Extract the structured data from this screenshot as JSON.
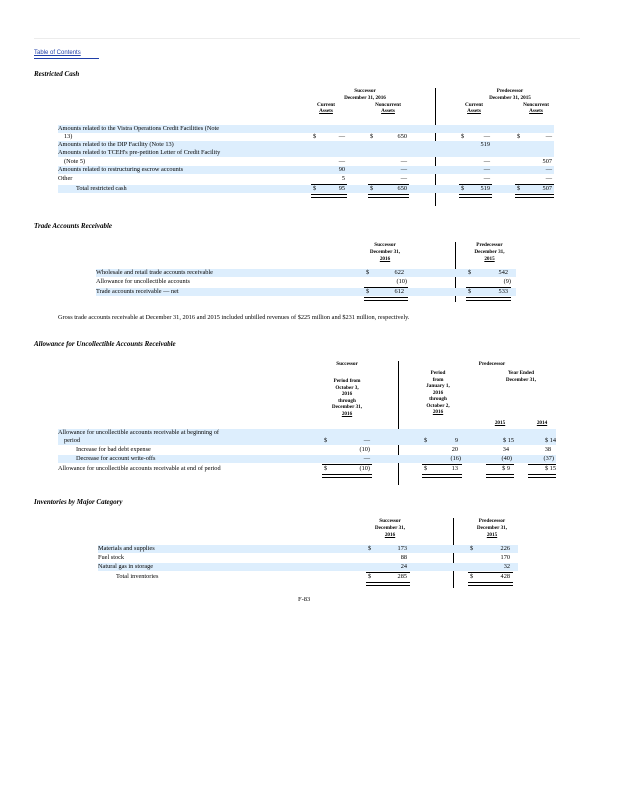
{
  "toc_link": "Table of Contents",
  "restricted_cash": {
    "title": "Restricted Cash",
    "successor_label": "Successor",
    "successor_date": "December 31, 2016",
    "predecessor_label": "Predecessor",
    "predecessor_date": "December 31, 2015",
    "col_current_1": "Current",
    "col_current_2": "Assets",
    "col_noncurrent_1": "Noncurrent",
    "col_noncurrent_2": "Assets",
    "rows": [
      {
        "label_1": "Amounts related to the Vistra Operations Credit Facilities (Note",
        "label_2": "13)",
        "s_cur": "—",
        "s_non": "650",
        "p_cur": "—",
        "p_non": "—",
        "dollar": "$"
      },
      {
        "label_1": "Amounts related to the DIP Facility (Note 13)",
        "s_cur": "",
        "s_non": "",
        "p_cur": "519",
        "p_non": ""
      },
      {
        "label_1": "Amounts related to TCEH's pre-petition Letter of Credit Facility",
        "label_2": "(Note 5)",
        "s_cur": "—",
        "s_non": "—",
        "p_cur": "—",
        "p_non": "507"
      },
      {
        "label_1": "Amounts related to restructuring escrow accounts",
        "s_cur": "90",
        "s_non": "—",
        "p_cur": "—",
        "p_non": "—"
      },
      {
        "label_1": "Other",
        "s_cur": "5",
        "s_non": "—",
        "p_cur": "—",
        "p_non": "—"
      },
      {
        "label_1": "Total restricted cash",
        "s_cur": "95",
        "s_non": "650",
        "p_cur": "519",
        "p_non": "507",
        "dollar": "$"
      }
    ]
  },
  "trade_ar": {
    "title": "Trade Accounts Receivable",
    "successor_label": "Successor",
    "successor_date_1": "December 31,",
    "successor_date_2": "2016",
    "predecessor_label": "Predecessor",
    "predecessor_date_1": "December 31,",
    "predecessor_date_2": "2015",
    "rows": [
      {
        "label": "Wholesale and retail trade accounts receivable",
        "s": "622",
        "p": "542",
        "dollar": "$"
      },
      {
        "label": "Allowance for uncollectible accounts",
        "s": "(10)",
        "p": "(9)"
      },
      {
        "label": "Trade accounts receivable — net",
        "s": "612",
        "p": "533",
        "dollar": "$"
      }
    ],
    "note": "Gross trade accounts receivable at December 31, 2016 and 2015 included unbilled revenues of $225 million and $231 million, respectively."
  },
  "allowance": {
    "title": "Allowance for Uncollectible Accounts Receivable",
    "successor_label": "Successor",
    "predecessor_label": "Predecessor",
    "successor_period": [
      "Period from",
      "October 3,",
      "2016",
      "through",
      "December 31,",
      "2016"
    ],
    "predecessor_period": [
      "Period",
      "from",
      "January 1,",
      "2016",
      "through",
      "October 2,",
      "2016"
    ],
    "year_ended_1": "Year Ended",
    "year_ended_2": "December 31,",
    "year_2015": "2015",
    "year_2014": "2014",
    "rows": [
      {
        "label_1": "Allowance for uncollectible accounts receivable at beginning of",
        "label_2": "period",
        "s": "—",
        "p": "9",
        "y15": "15",
        "y14": "14"
      },
      {
        "label_1": "Increase for bad debt expense",
        "s": "(10)",
        "p": "20",
        "y15": "34",
        "y14": "38"
      },
      {
        "label_1": "Decrease for account write-offs",
        "s": "—",
        "p": "(16)",
        "y15": "(40)",
        "y14": "(37)"
      },
      {
        "label_1": "Allowance for uncollectible accounts receivable at end of period",
        "s": "(10)",
        "p": "13",
        "y15": "9",
        "y14": "15"
      }
    ]
  },
  "inventories": {
    "title": "Inventories by Major Category",
    "successor_label": "Successor",
    "successor_date_1": "December 31,",
    "successor_date_2": "2016",
    "predecessor_label": "Predecessor",
    "predecessor_date_1": "December 31,",
    "predecessor_date_2": "2015",
    "rows": [
      {
        "label": "Materials and supplies",
        "s": "173",
        "p": "226",
        "dollar": "$"
      },
      {
        "label": "Fuel stock",
        "s": "88",
        "p": "170"
      },
      {
        "label": "Natural gas in storage",
        "s": "24",
        "p": "32"
      },
      {
        "label": "Total inventories",
        "s": "285",
        "p": "428",
        "dollar": "$"
      }
    ]
  },
  "page_number": "F-83"
}
